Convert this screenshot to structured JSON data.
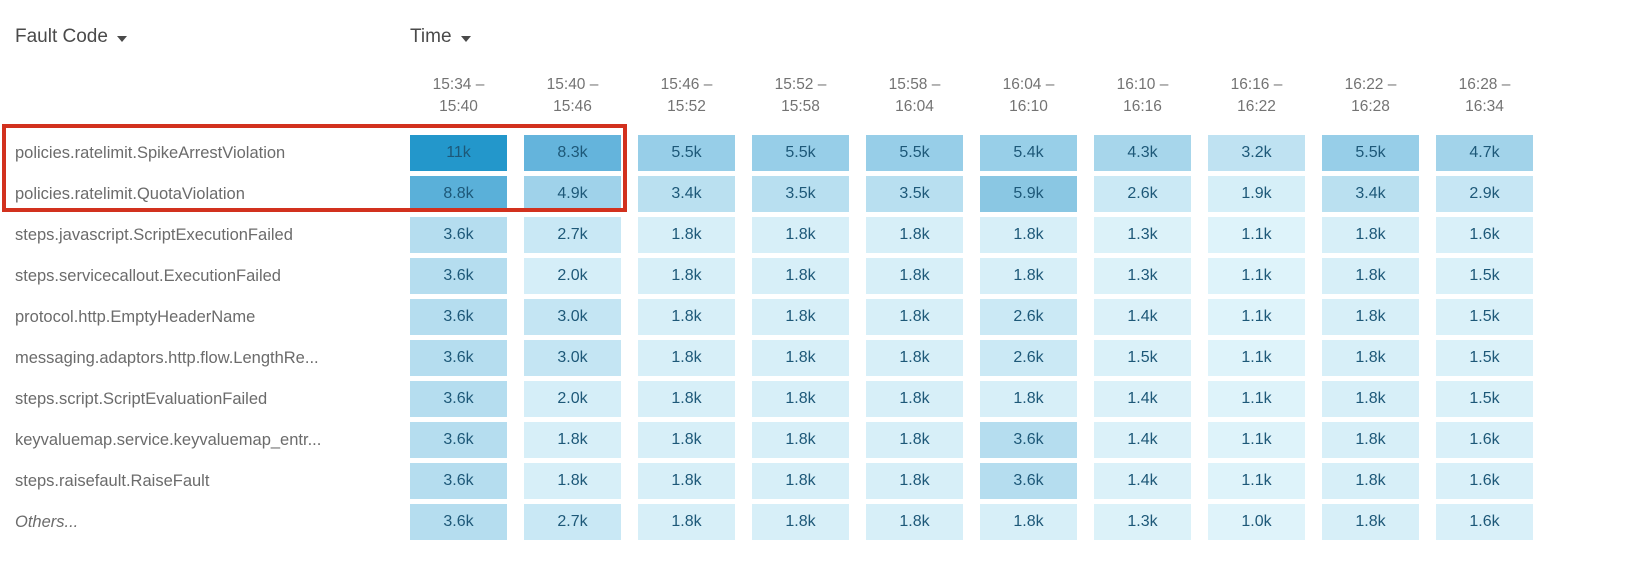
{
  "header": {
    "fault_code_label": "Fault Code",
    "time_label": "Time",
    "sort_icon": "chevron-down-icon"
  },
  "columns": [
    {
      "line1": "15:34 –",
      "line2": "15:40"
    },
    {
      "line1": "15:40 –",
      "line2": "15:46"
    },
    {
      "line1": "15:46 –",
      "line2": "15:52"
    },
    {
      "line1": "15:52 –",
      "line2": "15:58"
    },
    {
      "line1": "15:58 –",
      "line2": "16:04"
    },
    {
      "line1": "16:04 –",
      "line2": "16:10"
    },
    {
      "line1": "16:10 –",
      "line2": "16:16"
    },
    {
      "line1": "16:16 –",
      "line2": "16:22"
    },
    {
      "line1": "16:22 –",
      "line2": "16:28"
    },
    {
      "line1": "16:28 –",
      "line2": "16:34"
    }
  ],
  "rows": [
    {
      "label": "policies.ratelimit.SpikeArrestViolation",
      "italic": false,
      "values": [
        "11k",
        "8.3k",
        "5.5k",
        "5.5k",
        "5.5k",
        "5.4k",
        "4.3k",
        "3.2k",
        "5.5k",
        "4.7k"
      ]
    },
    {
      "label": "policies.ratelimit.QuotaViolation",
      "italic": false,
      "values": [
        "8.8k",
        "4.9k",
        "3.4k",
        "3.5k",
        "3.5k",
        "5.9k",
        "2.6k",
        "1.9k",
        "3.4k",
        "2.9k"
      ]
    },
    {
      "label": "steps.javascript.ScriptExecutionFailed",
      "italic": false,
      "values": [
        "3.6k",
        "2.7k",
        "1.8k",
        "1.8k",
        "1.8k",
        "1.8k",
        "1.3k",
        "1.1k",
        "1.8k",
        "1.6k"
      ]
    },
    {
      "label": "steps.servicecallout.ExecutionFailed",
      "italic": false,
      "values": [
        "3.6k",
        "2.0k",
        "1.8k",
        "1.8k",
        "1.8k",
        "1.8k",
        "1.3k",
        "1.1k",
        "1.8k",
        "1.5k"
      ]
    },
    {
      "label": "protocol.http.EmptyHeaderName",
      "italic": false,
      "values": [
        "3.6k",
        "3.0k",
        "1.8k",
        "1.8k",
        "1.8k",
        "2.6k",
        "1.4k",
        "1.1k",
        "1.8k",
        "1.5k"
      ]
    },
    {
      "label": "messaging.adaptors.http.flow.LengthRe...",
      "italic": false,
      "values": [
        "3.6k",
        "3.0k",
        "1.8k",
        "1.8k",
        "1.8k",
        "2.6k",
        "1.5k",
        "1.1k",
        "1.8k",
        "1.5k"
      ]
    },
    {
      "label": "steps.script.ScriptEvaluationFailed",
      "italic": false,
      "values": [
        "3.6k",
        "2.0k",
        "1.8k",
        "1.8k",
        "1.8k",
        "1.8k",
        "1.4k",
        "1.1k",
        "1.8k",
        "1.5k"
      ]
    },
    {
      "label": "keyvaluemap.service.keyvaluemap_entr...",
      "italic": false,
      "values": [
        "3.6k",
        "1.8k",
        "1.8k",
        "1.8k",
        "1.8k",
        "3.6k",
        "1.4k",
        "1.1k",
        "1.8k",
        "1.6k"
      ]
    },
    {
      "label": "steps.raisefault.RaiseFault",
      "italic": false,
      "values": [
        "3.6k",
        "1.8k",
        "1.8k",
        "1.8k",
        "1.8k",
        "3.6k",
        "1.4k",
        "1.1k",
        "1.8k",
        "1.6k"
      ]
    },
    {
      "label": "Others...",
      "italic": true,
      "values": [
        "3.6k",
        "2.7k",
        "1.8k",
        "1.8k",
        "1.8k",
        "1.8k",
        "1.3k",
        "1.0k",
        "1.8k",
        "1.6k"
      ]
    }
  ],
  "highlight": {
    "color": "#d2311e",
    "rows": [
      "policies.ratelimit.SpikeArrestViolation",
      "policies.ratelimit.QuotaViolation"
    ],
    "columns": [
      "15:34 – 15:40",
      "15:40 – 15:46"
    ]
  },
  "colors": {
    "background": "#ffffff",
    "sort_header_text": "#4a4a4a",
    "column_header_text": "#737373",
    "row_label_text": "#6b6b6b",
    "cell_text": "#1d5878",
    "highlight_border": "#d2311e",
    "heatmap_min": "#dff3fa",
    "heatmap_max": "#2397cb"
  },
  "color_scale": {
    "unit": "k",
    "stops": [
      {
        "v": 1.0,
        "c": "#dff3fa"
      },
      {
        "v": 2.0,
        "c": "#d5eef8"
      },
      {
        "v": 3.0,
        "c": "#c4e5f3"
      },
      {
        "v": 4.0,
        "c": "#abd8ec"
      },
      {
        "v": 5.5,
        "c": "#97cee8"
      },
      {
        "v": 6.0,
        "c": "#87c5e2"
      },
      {
        "v": 8.5,
        "c": "#61b3db"
      },
      {
        "v": 11.0,
        "c": "#2397cb"
      }
    ]
  },
  "chart_data": {
    "type": "heatmap",
    "xlabel": "Time",
    "ylabel": "Fault Code",
    "unit": "k (thousands)",
    "legend_position": "none",
    "x_categories": [
      "15:34 – 15:40",
      "15:40 – 15:46",
      "15:46 – 15:52",
      "15:52 – 15:58",
      "15:58 – 16:04",
      "16:04 – 16:10",
      "16:10 – 16:16",
      "16:16 – 16:22",
      "16:22 – 16:28",
      "16:28 – 16:34"
    ],
    "y_categories": [
      "policies.ratelimit.SpikeArrestViolation",
      "policies.ratelimit.QuotaViolation",
      "steps.javascript.ScriptExecutionFailed",
      "steps.servicecallout.ExecutionFailed",
      "protocol.http.EmptyHeaderName",
      "messaging.adaptors.http.flow.LengthRe...",
      "steps.script.ScriptEvaluationFailed",
      "keyvaluemap.service.keyvaluemap_entr...",
      "steps.raisefault.RaiseFault",
      "Others..."
    ],
    "values_k": [
      [
        11,
        8.3,
        5.5,
        5.5,
        5.5,
        5.4,
        4.3,
        3.2,
        5.5,
        4.7
      ],
      [
        8.8,
        4.9,
        3.4,
        3.5,
        3.5,
        5.9,
        2.6,
        1.9,
        3.4,
        2.9
      ],
      [
        3.6,
        2.7,
        1.8,
        1.8,
        1.8,
        1.8,
        1.3,
        1.1,
        1.8,
        1.6
      ],
      [
        3.6,
        2.0,
        1.8,
        1.8,
        1.8,
        1.8,
        1.3,
        1.1,
        1.8,
        1.5
      ],
      [
        3.6,
        3.0,
        1.8,
        1.8,
        1.8,
        2.6,
        1.4,
        1.1,
        1.8,
        1.5
      ],
      [
        3.6,
        3.0,
        1.8,
        1.8,
        1.8,
        2.6,
        1.5,
        1.1,
        1.8,
        1.5
      ],
      [
        3.6,
        2.0,
        1.8,
        1.8,
        1.8,
        1.8,
        1.4,
        1.1,
        1.8,
        1.5
      ],
      [
        3.6,
        1.8,
        1.8,
        1.8,
        1.8,
        3.6,
        1.4,
        1.1,
        1.8,
        1.6
      ],
      [
        3.6,
        1.8,
        1.8,
        1.8,
        1.8,
        3.6,
        1.4,
        1.1,
        1.8,
        1.6
      ],
      [
        3.6,
        2.7,
        1.8,
        1.8,
        1.8,
        1.8,
        1.3,
        1.0,
        1.8,
        1.6
      ]
    ]
  }
}
